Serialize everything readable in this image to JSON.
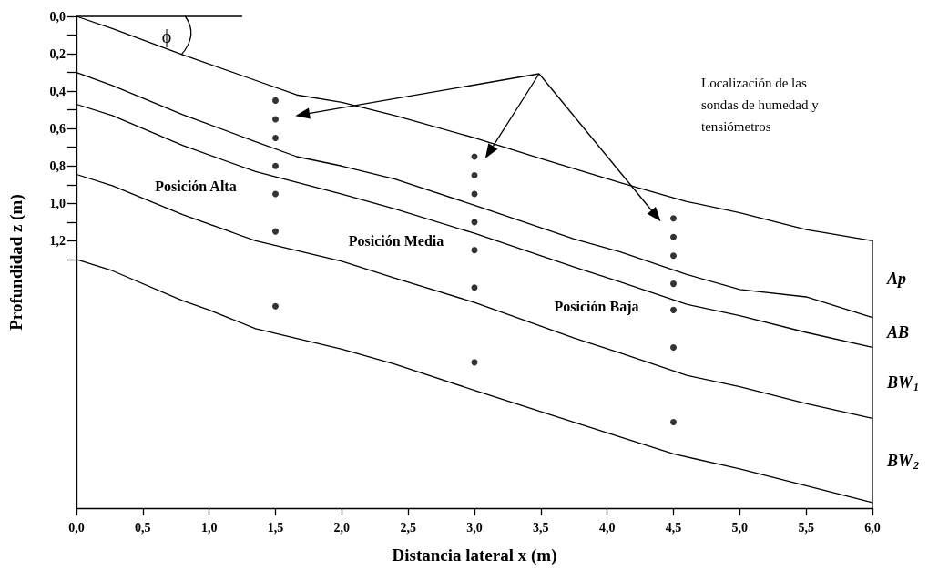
{
  "chart_data": {
    "type": "line",
    "xlabel": "Distancia lateral x (m)",
    "ylabel": "Profundidad z (m)",
    "xlim": [
      0,
      6
    ],
    "xticks": [
      {
        "value": 0,
        "label": "0,0"
      },
      {
        "value": 0.5,
        "label": "0,5"
      },
      {
        "value": 1,
        "label": "1,0"
      },
      {
        "value": 1.5,
        "label": "1,5"
      },
      {
        "value": 2,
        "label": "2,0"
      },
      {
        "value": 2.5,
        "label": "2,5"
      },
      {
        "value": 3,
        "label": "3,0"
      },
      {
        "value": 3.5,
        "label": "3,5"
      },
      {
        "value": 4,
        "label": "4,0"
      },
      {
        "value": 4.5,
        "label": "4,5"
      },
      {
        "value": 5,
        "label": "5,0"
      },
      {
        "value": 5.5,
        "label": "5,5"
      },
      {
        "value": 6,
        "label": "6,0"
      }
    ],
    "ylim": [
      2.63,
      0
    ],
    "yticks": [
      {
        "value": 0,
        "label": "0,0"
      },
      {
        "value": 0.1,
        "label": null
      },
      {
        "value": 0.2,
        "label": "0,2"
      },
      {
        "value": 0.3,
        "label": null
      },
      {
        "value": 0.4,
        "label": "0,4"
      },
      {
        "value": 0.5,
        "label": null
      },
      {
        "value": 0.6,
        "label": "0,6"
      },
      {
        "value": 0.7,
        "label": null
      },
      {
        "value": 0.8,
        "label": "0,8"
      },
      {
        "value": 0.9,
        "label": null
      },
      {
        "value": 1,
        "label": "1,0"
      },
      {
        "value": 1.1,
        "label": null
      },
      {
        "value": 1.2,
        "label": "1,2"
      },
      {
        "value": 1.3,
        "label": null
      }
    ],
    "marker": "none",
    "line_style": "solid",
    "series": [
      {
        "color": "#000000",
        "x": [
          0,
          0.27,
          0.8,
          1.3,
          1.66,
          2.0,
          2.4,
          3.0,
          3.5,
          4.1,
          4.6,
          5.0,
          5.5,
          6.0
        ],
        "values": [
          0,
          0.065,
          0.205,
          0.33,
          0.42,
          0.46,
          0.53,
          0.65,
          0.76,
          0.89,
          0.99,
          1.05,
          1.14,
          1.2
        ]
      },
      {
        "color": "#000000",
        "x": [
          0,
          0.27,
          0.8,
          1.35,
          1.66,
          2.0,
          2.4,
          3.0,
          3.75,
          4.1,
          4.6,
          5.0,
          5.5,
          6.0
        ],
        "values": [
          0.3,
          0.37,
          0.525,
          0.67,
          0.75,
          0.8,
          0.87,
          1.01,
          1.19,
          1.26,
          1.38,
          1.46,
          1.5,
          1.61
        ]
      },
      {
        "color": "#000000",
        "x": [
          0,
          0.27,
          0.8,
          1.35,
          2.0,
          2.4,
          3.0,
          3.75,
          4.1,
          4.6,
          5.0,
          5.5,
          6.0
        ],
        "values": [
          0.47,
          0.53,
          0.69,
          0.83,
          0.95,
          1.03,
          1.16,
          1.34,
          1.42,
          1.54,
          1.6,
          1.69,
          1.77
        ]
      },
      {
        "color": "#000000",
        "x": [
          0,
          0.27,
          0.8,
          1.35,
          2.0,
          2.4,
          3.0,
          3.75,
          4.1,
          4.6,
          5.0,
          5.5,
          6.0
        ],
        "values": [
          0.845,
          0.905,
          1.06,
          1.2,
          1.31,
          1.4,
          1.53,
          1.72,
          1.8,
          1.92,
          1.98,
          2.07,
          2.15
        ]
      },
      {
        "color": "#000000",
        "x": [
          0,
          0.27,
          0.8,
          1.0,
          1.35,
          2.0,
          2.4,
          3.0,
          3.75,
          4.1,
          4.5,
          5.0,
          5.5,
          6.0
        ],
        "values": [
          1.3,
          1.36,
          1.52,
          1.57,
          1.67,
          1.78,
          1.86,
          2.0,
          2.17,
          2.25,
          2.34,
          2.42,
          2.51,
          2.6
        ]
      },
      {
        "color": "#000000",
        "x": [
          6,
          6
        ],
        "values": [
          1.2,
          2.63
        ]
      },
      {
        "type": "scatter",
        "marker": "circle",
        "color": "#000000",
        "x": [
          1.5,
          1.5,
          1.5,
          1.5,
          1.5,
          1.5,
          1.5,
          3,
          3,
          3,
          3,
          3,
          3,
          3,
          4.5,
          4.5,
          4.5,
          4.5,
          4.5,
          4.5,
          4.5
        ],
        "values": [
          0.45,
          0.55,
          0.65,
          0.8,
          0.95,
          1.15,
          1.55,
          0.75,
          0.85,
          0.95,
          1.1,
          1.25,
          1.45,
          1.85,
          1.08,
          1.18,
          1.28,
          1.43,
          1.57,
          1.77,
          2.17
        ]
      }
    ],
    "annotations": [
      "Posición Alta",
      "Posición Media",
      "Posición Baja",
      "Localización de las sondas de humedad y tensiómetros",
      "ϕ",
      "Ap",
      "AB",
      "BW$_{1}$",
      "BW$_{2}$"
    ]
  }
}
